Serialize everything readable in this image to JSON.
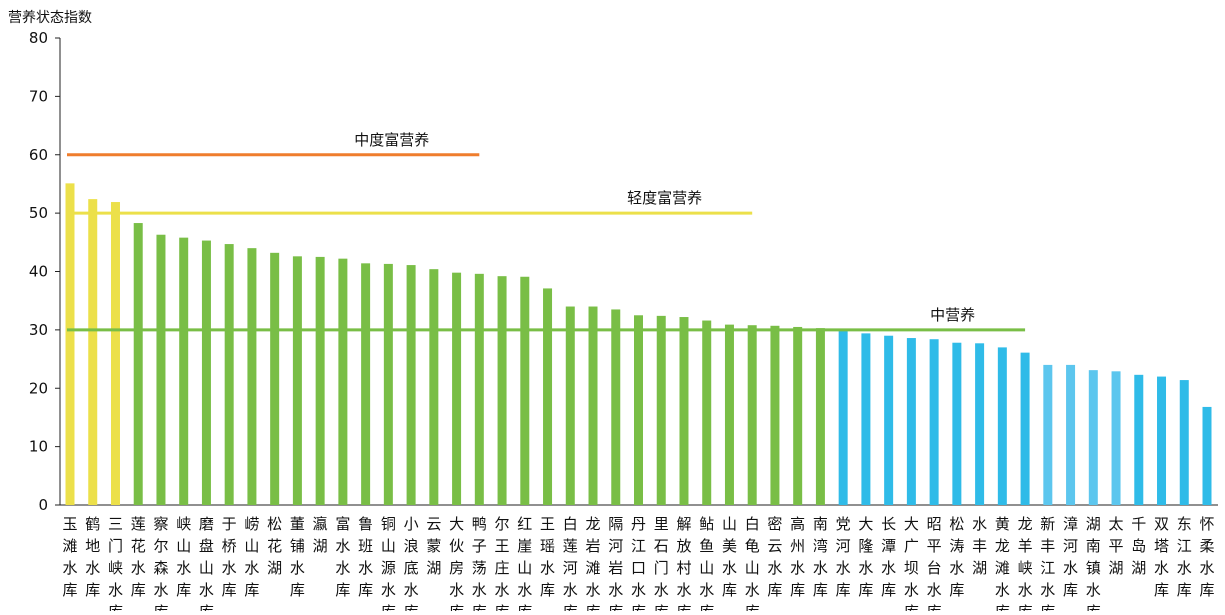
{
  "chart_data": {
    "type": "bar",
    "ylabel": "营养状态指数",
    "xlabel": "",
    "title": "",
    "ylim": [
      0,
      80
    ],
    "yticks": [
      0,
      10,
      20,
      30,
      40,
      50,
      60,
      70,
      80
    ],
    "grid": false,
    "categories": [
      "玉滩水库",
      "鹤地水库",
      "三门峡水库",
      "莲花水库",
      "察尔森水库",
      "峡山水库",
      "磨盘山水库",
      "于桥水库",
      "崂山水库",
      "松花湖",
      "董铺水库",
      "瀛湖",
      "富水水库",
      "鲁班水库",
      "铜山源水库",
      "小浪底水库",
      "云蒙湖",
      "大伙房水库",
      "鸭子荡水库",
      "尔王庄水库",
      "红崖山水库",
      "王瑶水库",
      "白莲河水库",
      "龙岩滩水库",
      "隔河岩水库",
      "丹江口水库",
      "里石门水库",
      "解放村水库",
      "鲇鱼山水库",
      "山美水库",
      "白龟山水库",
      "密云水库",
      "高州水库",
      "南湾水库",
      "党河水库",
      "大隆水库",
      "长潭水库",
      "大广坝水库",
      "昭平台水库",
      "松涛水库",
      "水丰湖",
      "黄龙滩水库",
      "龙羊峡水库",
      "新丰江水库",
      "漳河水库",
      "湖南镇水库",
      "太平湖",
      "千岛湖",
      "双塔水库",
      "东江水库",
      "怀柔水库"
    ],
    "values": [
      55.1,
      52.4,
      51.9,
      48.3,
      46.3,
      45.8,
      45.3,
      44.7,
      44.0,
      43.2,
      42.6,
      42.5,
      42.2,
      41.4,
      41.3,
      41.1,
      40.4,
      39.8,
      39.6,
      39.2,
      39.1,
      37.1,
      34.0,
      34.0,
      33.5,
      32.5,
      32.4,
      32.2,
      31.6,
      30.9,
      30.8,
      30.7,
      30.5,
      30.3,
      29.8,
      29.4,
      29.0,
      28.6,
      28.4,
      27.8,
      27.7,
      27.0,
      26.1,
      24.0,
      24.0,
      23.1,
      22.9,
      22.3,
      22.0,
      21.4,
      16.8
    ],
    "bar_colors": [
      "#ece04a",
      "#ece04a",
      "#ece04a",
      "#79be46",
      "#79be46",
      "#79be46",
      "#79be46",
      "#79be46",
      "#79be46",
      "#79be46",
      "#79be46",
      "#79be46",
      "#79be46",
      "#79be46",
      "#79be46",
      "#79be46",
      "#79be46",
      "#79be46",
      "#79be46",
      "#79be46",
      "#79be46",
      "#79be46",
      "#79be46",
      "#79be46",
      "#79be46",
      "#79be46",
      "#79be46",
      "#79be46",
      "#79be46",
      "#79be46",
      "#79be46",
      "#79be46",
      "#79be46",
      "#79be46",
      "#2fbbe8",
      "#2fbbe8",
      "#2fbbe8",
      "#2fbbe8",
      "#2fbbe8",
      "#2fbbe8",
      "#2fbbe8",
      "#2fbbe8",
      "#2fbbe8",
      "#5cc6ee",
      "#5cc6ee",
      "#5cc6ee",
      "#5cc6ee",
      "#2fbbe8",
      "#2fbbe8",
      "#2fbbe8",
      "#2fbbe8"
    ],
    "reference_lines": [
      {
        "label": "中度富营养",
        "value": 60,
        "color": "#ef7d2d",
        "from_index": 0,
        "to_index": 18
      },
      {
        "label": "轻度富营养",
        "value": 50,
        "color": "#ece04a",
        "from_index": 0,
        "to_index": 30
      },
      {
        "label": "中营养",
        "value": 30,
        "color": "#79be46",
        "from_index": 0,
        "to_index": 42
      }
    ]
  }
}
